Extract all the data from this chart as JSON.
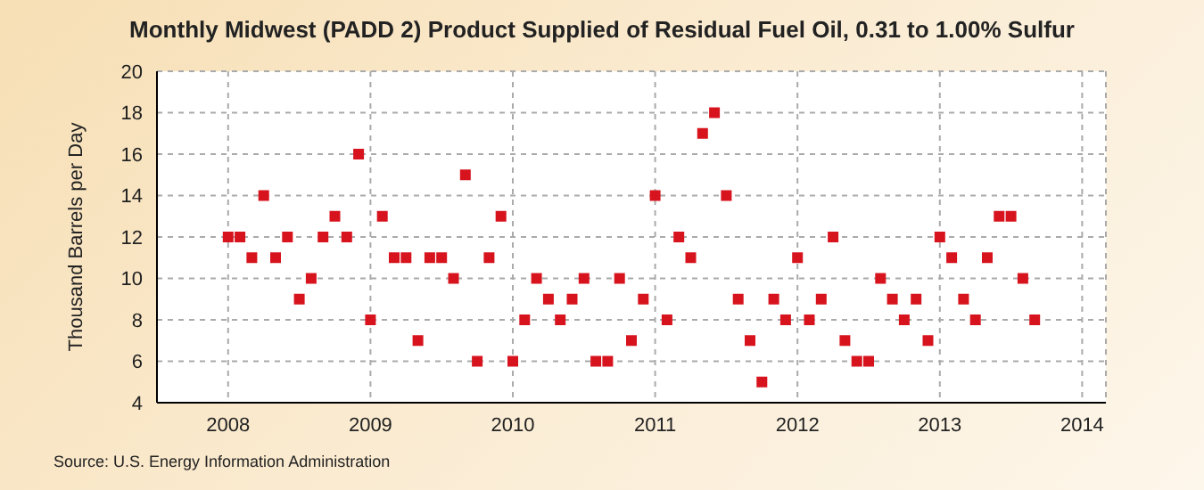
{
  "chart_data": {
    "type": "scatter",
    "title": "Monthly Midwest (PADD 2) Product Supplied of Residual Fuel Oil, 0.31 to 1.00% Sulfur",
    "ylabel": "Thousand Barrels per Day",
    "annotations": [
      "Source: U.S. Energy Information Administration"
    ],
    "x": [
      "2008-01",
      "2008-02",
      "2008-03",
      "2008-04",
      "2008-05",
      "2008-06",
      "2008-07",
      "2008-08",
      "2008-09",
      "2008-10",
      "2008-11",
      "2008-12",
      "2009-01",
      "2009-02",
      "2009-03",
      "2009-04",
      "2009-05",
      "2009-06",
      "2009-07",
      "2009-08",
      "2009-09",
      "2009-10",
      "2009-11",
      "2009-12",
      "2010-01",
      "2010-02",
      "2010-03",
      "2010-04",
      "2010-05",
      "2010-06",
      "2010-07",
      "2010-08",
      "2010-09",
      "2010-10",
      "2010-11",
      "2010-12",
      "2011-01",
      "2011-02",
      "2011-03",
      "2011-04",
      "2011-05",
      "2011-06",
      "2011-07",
      "2011-08",
      "2011-09",
      "2011-10",
      "2011-11",
      "2011-12",
      "2012-01",
      "2012-02",
      "2012-03",
      "2012-04",
      "2012-05",
      "2012-06",
      "2012-07",
      "2012-08",
      "2012-09",
      "2012-10",
      "2012-11",
      "2012-12",
      "2013-01",
      "2013-02",
      "2013-03",
      "2013-04",
      "2013-05",
      "2013-06",
      "2013-07",
      "2013-08",
      "2013-09"
    ],
    "series": [
      {
        "color": "#d7141e",
        "values": [
          12,
          12,
          11,
          14,
          11,
          12,
          9,
          10,
          12,
          13,
          12,
          16,
          8,
          13,
          11,
          11,
          7,
          11,
          11,
          10,
          15,
          6,
          11,
          13,
          6,
          8,
          10,
          9,
          8,
          9,
          10,
          6,
          6,
          10,
          7,
          9,
          14,
          8,
          12,
          11,
          17,
          18,
          14,
          9,
          7,
          5,
          9,
          8,
          11,
          8,
          9,
          12,
          7,
          6,
          6,
          10,
          9,
          8,
          9,
          7,
          12,
          11,
          9,
          8,
          11,
          13,
          13,
          10,
          8
        ]
      }
    ],
    "xlim": [
      "2007-07",
      "2014-03"
    ],
    "xticks": [
      "2008",
      "2009",
      "2010",
      "2011",
      "2012",
      "2013",
      "2014"
    ],
    "ylim": [
      4,
      20
    ],
    "yticks": [
      4,
      6,
      8,
      10,
      12,
      14,
      16,
      18,
      20
    ],
    "grid": true,
    "marker": "square",
    "legend": false
  }
}
